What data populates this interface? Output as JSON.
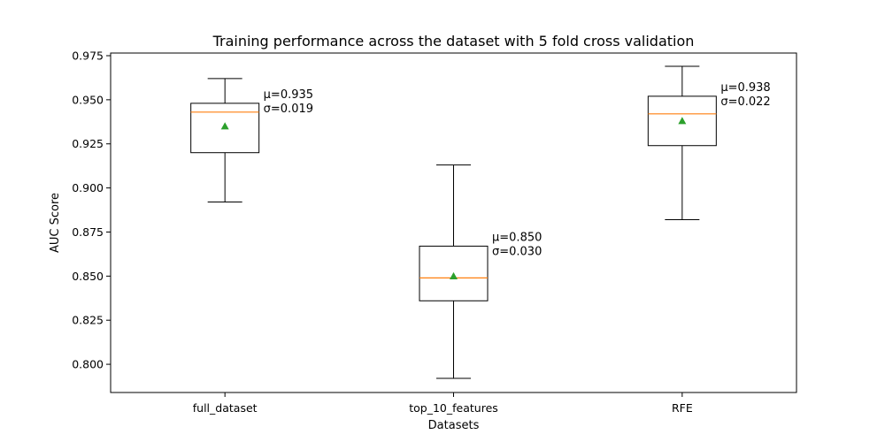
{
  "chart_data": {
    "type": "box",
    "title": "Training  performance across the dataset with 5 fold cross validation",
    "xlabel": "Datasets",
    "ylabel": "AUC Score",
    "ylim": [
      0.784,
      0.9765
    ],
    "yticks": [
      0.8,
      0.825,
      0.85,
      0.875,
      0.9,
      0.925,
      0.95,
      0.975
    ],
    "ytick_labels": [
      "0.800",
      "0.825",
      "0.850",
      "0.875",
      "0.900",
      "0.925",
      "0.950",
      "0.975"
    ],
    "grid": false,
    "colors": {
      "box": "#000000",
      "median": "#ff7f0e",
      "mean_marker": "#2ca02c"
    },
    "categories": [
      "full_dataset",
      "top_10_features",
      "RFE"
    ],
    "boxes": [
      {
        "category": "full_dataset",
        "whisker_low": 0.892,
        "q1": 0.92,
        "median": 0.943,
        "q3": 0.948,
        "whisker_high": 0.962,
        "mean": 0.935,
        "annotation_mu": "μ=0.935",
        "annotation_sigma": "σ=0.019"
      },
      {
        "category": "top_10_features",
        "whisker_low": 0.792,
        "q1": 0.836,
        "median": 0.849,
        "q3": 0.867,
        "whisker_high": 0.913,
        "mean": 0.85,
        "annotation_mu": "μ=0.850",
        "annotation_sigma": "σ=0.030"
      },
      {
        "category": "RFE",
        "whisker_low": 0.882,
        "q1": 0.924,
        "median": 0.942,
        "q3": 0.952,
        "whisker_high": 0.969,
        "mean": 0.938,
        "annotation_mu": "μ=0.938",
        "annotation_sigma": "σ=0.022"
      }
    ]
  }
}
